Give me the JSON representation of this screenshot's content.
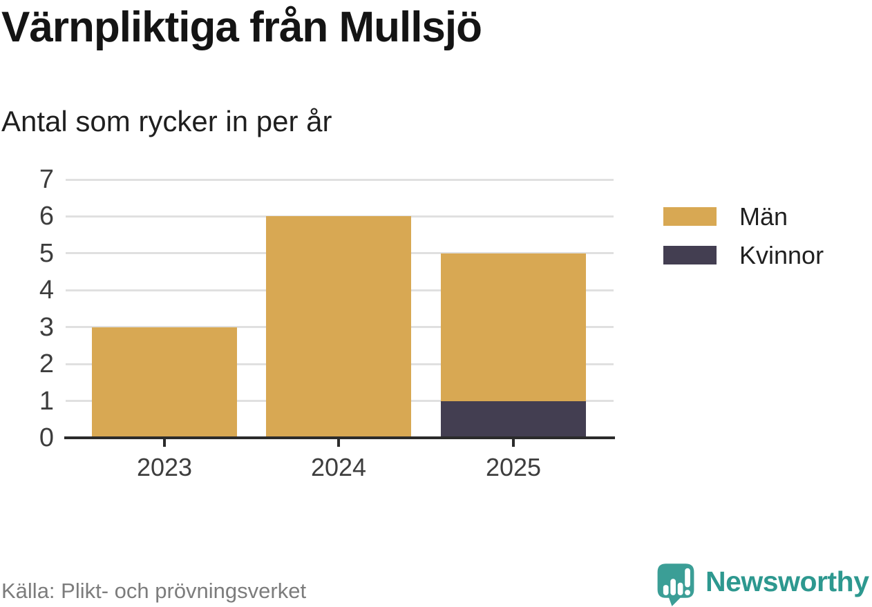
{
  "header": {
    "title": "Värnpliktiga från Mullsjö",
    "subtitle": "Antal som rycker in per år"
  },
  "chart_data": {
    "type": "bar",
    "stacked": true,
    "title": "Värnpliktiga från Mullsjö",
    "subtitle": "Antal som rycker in per år",
    "categories": [
      "2023",
      "2024",
      "2025"
    ],
    "series": [
      {
        "name": "Män",
        "color": "#d8a853",
        "values": [
          3,
          6,
          4
        ]
      },
      {
        "name": "Kvinnor",
        "color": "#433e51",
        "values": [
          0,
          0,
          1
        ]
      }
    ],
    "stack_totals": [
      3,
      6,
      5
    ],
    "xlabel": "",
    "ylabel": "",
    "ylim": [
      0,
      7
    ],
    "yticks": [
      0,
      1,
      2,
      3,
      4,
      5,
      6,
      7
    ],
    "grid": true,
    "legend_position": "right"
  },
  "legend": {
    "items": [
      {
        "label": "Män",
        "color": "#d8a853"
      },
      {
        "label": "Kvinnor",
        "color": "#433e51"
      }
    ]
  },
  "footer": {
    "source": "Källa: Plikt- och prövningsverket",
    "brand": "Newsworthy"
  },
  "icons": {
    "brand_logo": "newsworthy-speech-bubble-bar-chart-icon"
  },
  "colors": {
    "bar_men": "#d8a853",
    "bar_women": "#433e51",
    "brand_teal": "#3b9e96",
    "grid": "#e0e0e0",
    "axis": "#2b2b2b",
    "axis_text": "#3d3d3d",
    "source_gray": "#7c7c7c"
  }
}
